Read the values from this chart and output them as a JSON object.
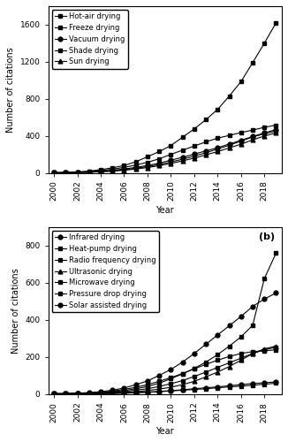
{
  "years": [
    2000,
    2001,
    2002,
    2003,
    2004,
    2005,
    2006,
    2007,
    2008,
    2009,
    2010,
    2011,
    2012,
    2013,
    2014,
    2015,
    2016,
    2017,
    2018,
    2019
  ],
  "panel_a": {
    "Hot-air drying": [
      2,
      5,
      10,
      20,
      35,
      55,
      80,
      120,
      175,
      230,
      295,
      385,
      475,
      575,
      685,
      830,
      985,
      1190,
      1400,
      1620
    ],
    "Freeze drying": [
      2,
      4,
      8,
      15,
      25,
      40,
      60,
      85,
      115,
      152,
      200,
      245,
      290,
      335,
      375,
      405,
      435,
      462,
      492,
      515
    ],
    "Vacuum drying": [
      1,
      3,
      6,
      10,
      18,
      28,
      42,
      60,
      80,
      105,
      138,
      168,
      203,
      238,
      272,
      312,
      352,
      393,
      432,
      468
    ],
    "Shade drying": [
      1,
      2,
      5,
      8,
      14,
      22,
      34,
      50,
      68,
      90,
      118,
      148,
      182,
      218,
      258,
      298,
      343,
      388,
      422,
      452
    ],
    "Sun drying": [
      1,
      2,
      4,
      7,
      12,
      19,
      29,
      42,
      58,
      78,
      102,
      130,
      160,
      195,
      230,
      270,
      310,
      357,
      398,
      432
    ]
  },
  "panel_a_ylim": [
    0,
    1800
  ],
  "panel_a_yticks": [
    0,
    400,
    800,
    1200,
    1600
  ],
  "panel_a_markers": [
    "s",
    "s",
    "o",
    "s",
    "^"
  ],
  "panel_a_labels": [
    "Hot-air drying",
    "Freeze drying",
    "Vacuum drying",
    "Shade drying",
    "Sun drying"
  ],
  "panel_b": {
    "Infrared drying": [
      1,
      2,
      4,
      7,
      12,
      20,
      32,
      50,
      70,
      100,
      132,
      172,
      218,
      268,
      318,
      368,
      418,
      472,
      512,
      545
    ],
    "Heat-pump drying": [
      1,
      1,
      2,
      4,
      7,
      12,
      18,
      28,
      40,
      58,
      82,
      108,
      138,
      172,
      212,
      258,
      308,
      370,
      622,
      760
    ],
    "Radio frequency drying": [
      1,
      1,
      2,
      3,
      5,
      8,
      13,
      20,
      28,
      40,
      55,
      72,
      94,
      118,
      143,
      168,
      193,
      218,
      238,
      252
    ],
    "Ultrasonic drying": [
      0,
      0,
      1,
      2,
      3,
      5,
      8,
      12,
      18,
      26,
      36,
      50,
      68,
      92,
      118,
      148,
      182,
      218,
      243,
      258
    ],
    "Microwave drying": [
      1,
      2,
      3,
      5,
      9,
      15,
      24,
      36,
      50,
      68,
      88,
      110,
      135,
      160,
      182,
      202,
      218,
      228,
      233,
      238
    ],
    "Pressure drop drying": [
      0,
      0,
      0,
      1,
      2,
      3,
      4,
      6,
      9,
      12,
      16,
      20,
      24,
      28,
      33,
      38,
      42,
      47,
      52,
      58
    ],
    "Solar assisted drying": [
      0,
      0,
      1,
      1,
      2,
      3,
      5,
      7,
      10,
      13,
      18,
      22,
      28,
      33,
      38,
      44,
      50,
      56,
      60,
      65
    ]
  },
  "panel_b_ylim": [
    0,
    900
  ],
  "panel_b_yticks": [
    0,
    200,
    400,
    600,
    800
  ],
  "panel_b_markers": [
    "o",
    "s",
    "s",
    "^",
    "s",
    "s",
    "o"
  ],
  "panel_b_labels": [
    "Infrared drying",
    "Heat-pump drying",
    "Radio frequency drying",
    "Ultrasonic drying",
    "Microwave drying",
    "Pressure drop drying",
    "Solar assisted drying"
  ],
  "xlabel": "Year",
  "ylabel": "Number of citations",
  "label_b": "(b)",
  "linewidth": 0.8,
  "markersize": 3.5,
  "fontsize_label": 7,
  "fontsize_tick": 6.5,
  "fontsize_legend": 6,
  "color": "black"
}
